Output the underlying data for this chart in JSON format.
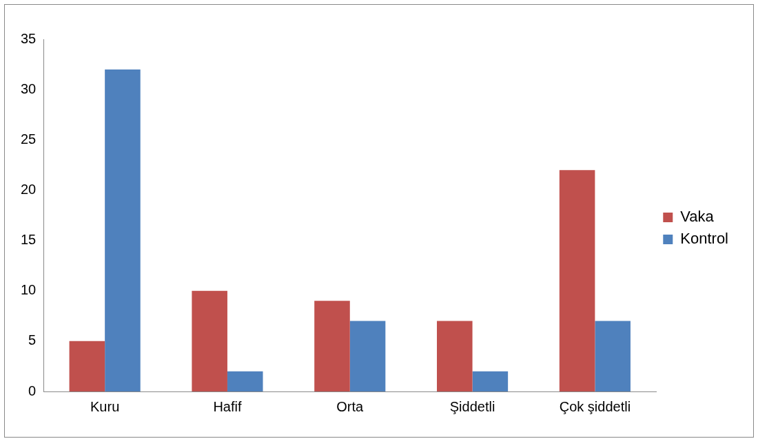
{
  "chart_data": {
    "type": "bar",
    "categories": [
      "Kuru",
      "Hafif",
      "Orta",
      "Şiddetli",
      "Çok şiddetli"
    ],
    "series": [
      {
        "name": "Vaka",
        "color": "#c0504d",
        "values": [
          5,
          10,
          9,
          7,
          22
        ]
      },
      {
        "name": "Kontrol",
        "color": "#4f81bd",
        "values": [
          32,
          2,
          7,
          2,
          7
        ]
      }
    ],
    "ylim": [
      0,
      35
    ],
    "yticks": [
      0,
      5,
      10,
      15,
      20,
      25,
      30,
      35
    ],
    "grid": false,
    "legend": "right"
  }
}
